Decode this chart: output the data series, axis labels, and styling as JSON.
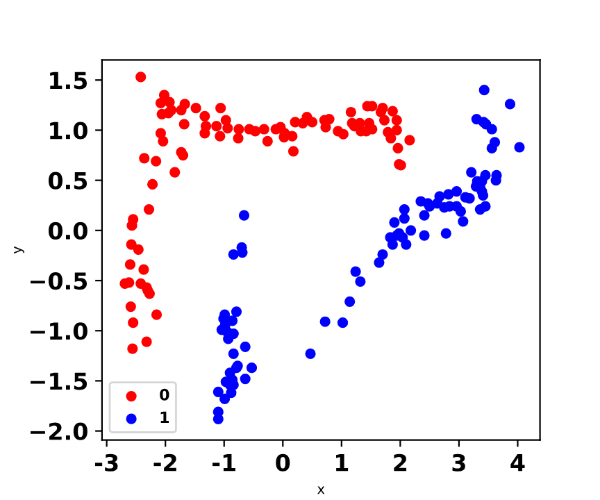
{
  "chart_data": {
    "type": "scatter",
    "xlabel": "x",
    "ylabel": "y",
    "xlim": [
      -3.08,
      4.38
    ],
    "ylim": [
      -2.09,
      1.7
    ],
    "xticks": [
      -3,
      -2,
      -1,
      0,
      1,
      2,
      3,
      4
    ],
    "yticks": [
      {
        "value": -2,
        "label": "−2.0"
      },
      {
        "value": -1.5,
        "label": "−1.5"
      },
      {
        "value": -1,
        "label": "−1.0"
      },
      {
        "value": -0.5,
        "label": "−0.5"
      },
      {
        "value": 0,
        "label": "0.0"
      },
      {
        "value": 0.5,
        "label": "0.5"
      },
      {
        "value": 1,
        "label": "1.0"
      },
      {
        "value": 1.5,
        "label": "1.5"
      }
    ],
    "legend": "lower left",
    "marker": "circle",
    "grid": false,
    "series": [
      {
        "name": "0",
        "color": "#ff0000",
        "x": [
          -2.42,
          -2.02,
          -2.08,
          -1.93,
          -2.06,
          -1.95,
          -1.9,
          -1.73,
          -1.67,
          -1.68,
          -1.48,
          -1.33,
          -1.31,
          -1.33,
          -1.13,
          -1.06,
          -1.07,
          -0.97,
          -0.94,
          -0.75,
          -0.76,
          -0.57,
          -0.47,
          -0.32,
          -0.26,
          -2.08,
          -2.04,
          -2.36,
          -2.16,
          -1.73,
          -1.7,
          -1.84,
          -2.22,
          -2.28,
          -2.55,
          -2.57,
          -2.58,
          -2.46,
          -2.6,
          -2.37,
          -2.69,
          -2.62,
          -2.42,
          -2.32,
          -2.3,
          -2.27,
          -2.59,
          -2.15,
          -2.55,
          -2.32,
          -2.56,
          -0.12,
          -0.04,
          0.03,
          0.02,
          0.16,
          0.18,
          0.21,
          0.34,
          0.41,
          0.5,
          0.71,
          0.79,
          0.73,
          0.94,
          1.03,
          1.16,
          1.18,
          1.22,
          1.31,
          1.33,
          1.42,
          1.47,
          1.52,
          1.44,
          1.52,
          1.67,
          1.7,
          1.87,
          1.73,
          1.94,
          1.79,
          1.94,
          1.84,
          2.16,
          1.96,
          1.98,
          2.01
        ],
        "values": [
          1.53,
          1.35,
          1.27,
          1.28,
          1.16,
          1.17,
          1.2,
          1.2,
          1.26,
          1.06,
          1.22,
          1.14,
          1.04,
          0.97,
          1.04,
          1.22,
          0.94,
          1.1,
          1.02,
          1.01,
          0.92,
          1.01,
          0.99,
          1.01,
          0.89,
          0.97,
          0.89,
          0.72,
          0.69,
          0.78,
          0.75,
          0.58,
          0.46,
          0.21,
          0.11,
          0.05,
          -0.14,
          -0.19,
          -0.34,
          -0.39,
          -0.53,
          -0.52,
          -0.53,
          -0.57,
          -0.6,
          -0.63,
          -0.76,
          -0.84,
          -0.92,
          -1.11,
          -1.18,
          1.01,
          1.03,
          0.97,
          0.93,
          0.94,
          0.79,
          1.08,
          1.07,
          1.13,
          1.08,
          1.1,
          1.11,
          1.03,
          0.99,
          0.96,
          1.18,
          1.07,
          1.04,
          1.07,
          0.99,
          0.99,
          1.07,
          1.01,
          1.24,
          1.24,
          1.18,
          1.22,
          1.19,
          1.1,
          1.1,
          0.98,
          1.0,
          0.92,
          0.9,
          0.82,
          0.66,
          0.65
        ]
      },
      {
        "name": "1",
        "color": "#0000ff",
        "x": [
          -0.66,
          -0.84,
          -0.7,
          -0.69,
          -0.79,
          -0.99,
          -1.01,
          -0.86,
          -0.98,
          -1.04,
          -0.95,
          -0.84,
          -0.93,
          -0.64,
          -0.84,
          -0.53,
          -0.77,
          -0.79,
          -0.9,
          -0.64,
          -0.97,
          -0.86,
          -0.84,
          -0.9,
          -1.1,
          -0.88,
          -0.99,
          -1.1,
          -1.1,
          0.47,
          0.72,
          1.02,
          1.14,
          1.24,
          1.32,
          1.64,
          1.7,
          1.83,
          1.87,
          1.9,
          1.94,
          1.98,
          2.04,
          2.07,
          2.07,
          2.18,
          2.1,
          2.35,
          2.41,
          2.41,
          2.47,
          2.5,
          2.63,
          2.67,
          2.75,
          2.78,
          2.82,
          2.84,
          2.96,
          2.96,
          3.03,
          3.07,
          3.11,
          3.18,
          3.21,
          3.29,
          3.31,
          3.39,
          3.36,
          3.39,
          3.41,
          3.36,
          3.45,
          3.45,
          3.64,
          3.63,
          3.43,
          3.87,
          3.3,
          3.42,
          3.46,
          3.56,
          3.61,
          3.56,
          4.03
        ],
        "values": [
          0.15,
          -0.24,
          -0.17,
          -0.22,
          -0.81,
          -0.84,
          -0.88,
          -0.9,
          -0.94,
          -0.99,
          -1.01,
          -1.03,
          -1.08,
          -1.16,
          -1.23,
          -1.37,
          -1.35,
          -1.37,
          -1.42,
          -1.48,
          -1.51,
          -1.49,
          -1.54,
          -1.54,
          -1.61,
          -1.62,
          -1.68,
          -1.81,
          -1.88,
          -1.23,
          -0.91,
          -0.92,
          -0.71,
          -0.41,
          -0.51,
          -0.32,
          -0.24,
          -0.07,
          -0.14,
          0.08,
          -0.05,
          -0.03,
          -0.07,
          0.21,
          0.12,
          0.0,
          -0.14,
          0.29,
          0.15,
          -0.05,
          0.27,
          0.24,
          0.27,
          0.34,
          0.23,
          -0.03,
          0.36,
          0.24,
          0.39,
          0.24,
          0.19,
          0.09,
          0.33,
          0.32,
          0.58,
          0.44,
          0.49,
          0.49,
          0.43,
          0.39,
          0.35,
          0.21,
          0.24,
          0.55,
          0.55,
          0.5,
          1.4,
          1.26,
          1.11,
          1.08,
          1.06,
          1.01,
          0.88,
          0.82,
          0.83
        ]
      }
    ]
  }
}
